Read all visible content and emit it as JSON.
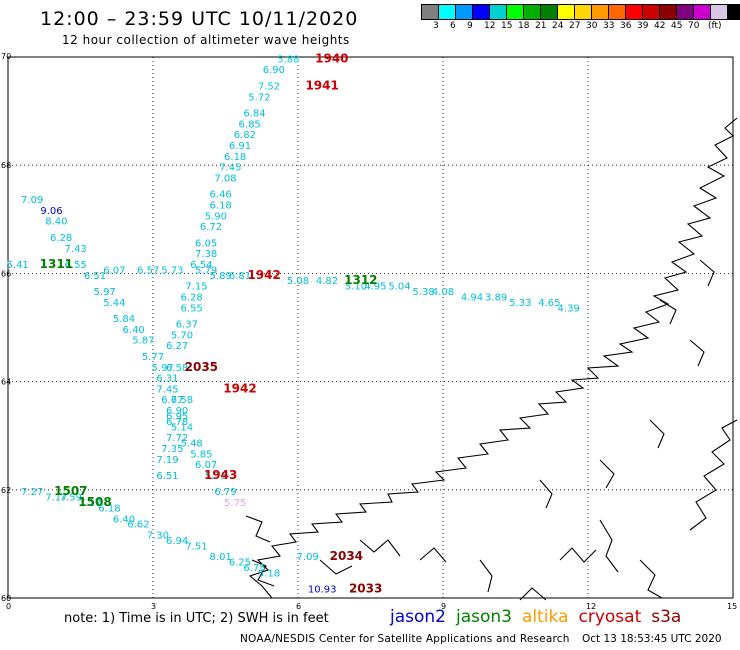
{
  "title": "12:00  –  23:59  UTC  10/11/2020",
  "subtitle": "12 hour collection of altimeter wave heights",
  "legend": {
    "colors": [
      "#808080",
      "#00ffff",
      "#0099ff",
      "#0000ff",
      "#00d0d0",
      "#00ff00",
      "#00b000",
      "#008000",
      "#ffff00",
      "#ffd700",
      "#ff9900",
      "#ff6600",
      "#ff0000",
      "#cc0000",
      "#8b0000",
      "#800080",
      "#cc00cc",
      "#d9c6e6",
      "#000000"
    ],
    "labels": [
      "3",
      "6",
      "9",
      "12",
      "15",
      "18",
      "21",
      "24",
      "27",
      "30",
      "33",
      "36",
      "39",
      "42",
      "45",
      "70",
      "(ft)"
    ]
  },
  "axes": {
    "lon_labels": [
      "0",
      "3",
      "6",
      "9",
      "12",
      "15"
    ],
    "lat_labels": [
      "70",
      "68",
      "66",
      "64",
      "62",
      "60"
    ]
  },
  "colors": {
    "jason2": "#0000cc",
    "jason3": "#008000",
    "altika": "#ff9900",
    "cryosat": "#cc0000",
    "s3a": "#8b0000",
    "wave_cyan": "#00c0d8"
  },
  "tracks": [
    {
      "points": [
        {
          "lon": 5.8,
          "lat": 69.9,
          "v": "5.88",
          "c": "#00d8d8"
        },
        {
          "lon": 5.5,
          "lat": 69.7,
          "v": "6.90",
          "c": "#00c0d8"
        },
        {
          "lon": 5.4,
          "lat": 69.4,
          "v": "7.52",
          "c": "#00c0d8"
        },
        {
          "lon": 5.2,
          "lat": 69.2,
          "v": "5.72",
          "c": "#00c0d8"
        },
        {
          "lon": 5.1,
          "lat": 68.9,
          "v": "6.84",
          "c": "#00c0d8"
        },
        {
          "lon": 5.0,
          "lat": 68.7,
          "v": "6.85",
          "c": "#00c0d8"
        },
        {
          "lon": 4.9,
          "lat": 68.5,
          "v": "6.82",
          "c": "#00c0d8"
        },
        {
          "lon": 4.8,
          "lat": 68.3,
          "v": "6.91",
          "c": "#00c0d8"
        },
        {
          "lon": 4.7,
          "lat": 68.1,
          "v": "6.18",
          "c": "#00c0d8"
        },
        {
          "lon": 4.6,
          "lat": 67.9,
          "v": "7.45",
          "c": "#00c0d8"
        },
        {
          "lon": 4.5,
          "lat": 67.7,
          "v": "7.08",
          "c": "#00c0d8"
        },
        {
          "lon": 4.4,
          "lat": 67.4,
          "v": "6.46",
          "c": "#00c0d8"
        },
        {
          "lon": 4.4,
          "lat": 67.2,
          "v": "6.18",
          "c": "#00c0d8"
        },
        {
          "lon": 4.3,
          "lat": 67.0,
          "v": "5.90",
          "c": "#00c0d8"
        },
        {
          "lon": 4.2,
          "lat": 66.8,
          "v": "6.72",
          "c": "#00c0d8"
        },
        {
          "lon": 4.1,
          "lat": 66.5,
          "v": "6.05",
          "c": "#00c0d8"
        },
        {
          "lon": 4.1,
          "lat": 66.3,
          "v": "7.38",
          "c": "#00c0d8"
        },
        {
          "lon": 4.0,
          "lat": 66.1,
          "v": "6.54",
          "c": "#00c0d8"
        },
        {
          "lon": 3.9,
          "lat": 65.7,
          "v": "7.15",
          "c": "#00c0d8"
        },
        {
          "lon": 3.8,
          "lat": 65.5,
          "v": "6.28",
          "c": "#00c0d8"
        },
        {
          "lon": 3.8,
          "lat": 65.3,
          "v": "6.55",
          "c": "#00c0d8"
        },
        {
          "lon": 3.7,
          "lat": 65.0,
          "v": "6.37",
          "c": "#00c0d8"
        },
        {
          "lon": 3.6,
          "lat": 64.8,
          "v": "5.70",
          "c": "#00c0d8"
        },
        {
          "lon": 3.5,
          "lat": 64.6,
          "v": "6.27",
          "c": "#00c0d8"
        },
        {
          "lon": 3.5,
          "lat": 64.2,
          "v": "6.58",
          "c": "#00c0d8"
        },
        {
          "lon": 3.3,
          "lat": 64.0,
          "v": "6.31",
          "c": "#00c0d8"
        },
        {
          "lon": 3.3,
          "lat": 63.8,
          "v": "7.45",
          "c": "#00c0d8"
        },
        {
          "lon": 3.4,
          "lat": 63.6,
          "v": "6.67",
          "c": "#00c0d8"
        },
        {
          "lon": 3.5,
          "lat": 63.3,
          "v": "6.95",
          "c": "#00c0d8"
        },
        {
          "lon": 3.6,
          "lat": 63.1,
          "v": "5.14",
          "c": "#00c0d8"
        },
        {
          "lon": 3.8,
          "lat": 62.8,
          "v": "5.48",
          "c": "#00c0d8"
        },
        {
          "lon": 4.0,
          "lat": 62.6,
          "v": "5.85",
          "c": "#00c0d8"
        },
        {
          "lon": 4.1,
          "lat": 62.4,
          "v": "6.07",
          "c": "#00c0d8"
        },
        {
          "lon": 4.3,
          "lat": 62.2,
          "v": "5.75",
          "c": "#00c0d8"
        },
        {
          "lon": 4.5,
          "lat": 61.9,
          "v": "6.79",
          "c": "#00c0d8"
        },
        {
          "lon": 4.7,
          "lat": 61.7,
          "v": "5.75",
          "c": "#d9a6e6"
        }
      ]
    },
    {
      "points": [
        {
          "lon": 0.5,
          "lat": 67.3,
          "v": "7.09",
          "c": "#00c0d8"
        },
        {
          "lon": 0.9,
          "lat": 67.1,
          "v": "9.06",
          "c": "#0000cc"
        },
        {
          "lon": 1.0,
          "lat": 66.9,
          "v": "8.40",
          "c": "#00c0d8"
        },
        {
          "lon": 1.1,
          "lat": 66.6,
          "v": "6.28",
          "c": "#00c0d8"
        },
        {
          "lon": 1.4,
          "lat": 66.4,
          "v": "7.43",
          "c": "#00c0d8"
        },
        {
          "lon": 1.8,
          "lat": 65.9,
          "v": "6.51",
          "c": "#00c0d8"
        },
        {
          "lon": 2.0,
          "lat": 65.6,
          "v": "5.97",
          "c": "#00c0d8"
        },
        {
          "lon": 2.2,
          "lat": 65.4,
          "v": "5.44",
          "c": "#00c0d8"
        },
        {
          "lon": 2.4,
          "lat": 65.1,
          "v": "5.84",
          "c": "#00c0d8"
        },
        {
          "lon": 2.6,
          "lat": 64.9,
          "v": "6.40",
          "c": "#00c0d8"
        },
        {
          "lon": 2.8,
          "lat": 64.7,
          "v": "5.87",
          "c": "#00c0d8"
        },
        {
          "lon": 3.0,
          "lat": 64.4,
          "v": "5.77",
          "c": "#00c0d8"
        },
        {
          "lon": 3.2,
          "lat": 64.2,
          "v": "5.97",
          "c": "#00c0d8"
        },
        {
          "lon": 3.6,
          "lat": 63.6,
          "v": "7.58",
          "c": "#00c0d8"
        },
        {
          "lon": 3.5,
          "lat": 63.4,
          "v": "6.90",
          "c": "#00c0d8"
        },
        {
          "lon": 3.5,
          "lat": 63.2,
          "v": "6.78",
          "c": "#00c0d8"
        },
        {
          "lon": 3.5,
          "lat": 62.9,
          "v": "7.72",
          "c": "#00c0d8"
        },
        {
          "lon": 3.4,
          "lat": 62.7,
          "v": "7.35",
          "c": "#00c0d8"
        },
        {
          "lon": 3.3,
          "lat": 62.5,
          "v": "7.19",
          "c": "#00c0d8"
        },
        {
          "lon": 3.3,
          "lat": 62.2,
          "v": "6.51",
          "c": "#00c0d8"
        }
      ]
    },
    {
      "points": [
        {
          "lon": 0.2,
          "lat": 66.1,
          "v": "5.41",
          "c": "#00c0d8"
        },
        {
          "lon": 1.4,
          "lat": 66.1,
          "v": "6.55",
          "c": "#00c0d8"
        },
        {
          "lon": 2.2,
          "lat": 66.0,
          "v": "6.07",
          "c": "#00c0d8"
        },
        {
          "lon": 2.9,
          "lat": 66.0,
          "v": "6.57",
          "c": "#00c0d8"
        },
        {
          "lon": 3.4,
          "lat": 66.0,
          "v": "5.73",
          "c": "#00c0d8"
        },
        {
          "lon": 4.1,
          "lat": 66.0,
          "v": "5.79",
          "c": "#00c0d8"
        },
        {
          "lon": 4.4,
          "lat": 65.9,
          "v": "5.89",
          "c": "#00c0d8"
        },
        {
          "lon": 4.8,
          "lat": 65.9,
          "v": "6.81",
          "c": "#00c0d8"
        },
        {
          "lon": 6.0,
          "lat": 65.8,
          "v": "5.08",
          "c": "#00c0d8"
        },
        {
          "lon": 6.6,
          "lat": 65.8,
          "v": "4.82",
          "c": "#00c0d8"
        },
        {
          "lon": 7.2,
          "lat": 65.7,
          "v": "5.10",
          "c": "#00c0d8"
        },
        {
          "lon": 7.6,
          "lat": 65.7,
          "v": "4.95",
          "c": "#00c0d8"
        },
        {
          "lon": 8.1,
          "lat": 65.7,
          "v": "5.04",
          "c": "#00c0d8"
        },
        {
          "lon": 8.6,
          "lat": 65.6,
          "v": "5.38",
          "c": "#00c0d8"
        },
        {
          "lon": 9.0,
          "lat": 65.6,
          "v": "4.08",
          "c": "#00c0d8"
        },
        {
          "lon": 9.6,
          "lat": 65.5,
          "v": "4.94",
          "c": "#00c0d8"
        },
        {
          "lon": 10.1,
          "lat": 65.5,
          "v": "3.89",
          "c": "#00c0d8"
        },
        {
          "lon": 10.6,
          "lat": 65.4,
          "v": "5.33",
          "c": "#00c0d8"
        },
        {
          "lon": 11.2,
          "lat": 65.4,
          "v": "4.65",
          "c": "#00c0d8"
        },
        {
          "lon": 11.6,
          "lat": 65.3,
          "v": "4.39",
          "c": "#00c0d8"
        }
      ]
    },
    {
      "points": [
        {
          "lon": 0.5,
          "lat": 61.9,
          "v": "7.27",
          "c": "#00c0d8"
        },
        {
          "lon": 1.0,
          "lat": 61.8,
          "v": "7.17",
          "c": "#00c0d8"
        },
        {
          "lon": 1.3,
          "lat": 61.8,
          "v": "7.59",
          "c": "#00c0d8"
        },
        {
          "lon": 1.7,
          "lat": 61.7,
          "v": "7.17",
          "c": "#00c0d8"
        },
        {
          "lon": 2.1,
          "lat": 61.6,
          "v": "6.18",
          "c": "#00c0d8"
        },
        {
          "lon": 2.4,
          "lat": 61.4,
          "v": "6.40",
          "c": "#00c0d8"
        },
        {
          "lon": 2.7,
          "lat": 61.3,
          "v": "6.62",
          "c": "#00c0d8"
        },
        {
          "lon": 3.1,
          "lat": 61.1,
          "v": "7.30",
          "c": "#00c0d8"
        },
        {
          "lon": 3.5,
          "lat": 61.0,
          "v": "6.94",
          "c": "#00c0d8"
        },
        {
          "lon": 3.9,
          "lat": 60.9,
          "v": "7.51",
          "c": "#00c0d8"
        },
        {
          "lon": 4.4,
          "lat": 60.7,
          "v": "8.01",
          "c": "#00c0d8"
        },
        {
          "lon": 4.8,
          "lat": 60.6,
          "v": "6.25",
          "c": "#00c0d8"
        },
        {
          "lon": 5.1,
          "lat": 60.5,
          "v": "6.75",
          "c": "#00c0d8"
        },
        {
          "lon": 5.4,
          "lat": 60.4,
          "v": "5.18",
          "c": "#00c0d8"
        }
      ]
    },
    {
      "points": [
        {
          "lon": 6.2,
          "lat": 60.7,
          "v": "7.09",
          "c": "#00c0d8"
        },
        {
          "lon": 6.5,
          "lat": 60.1,
          "v": "10.93",
          "c": "#0000cc"
        }
      ]
    }
  ],
  "pass_times": [
    {
      "lon": 6.7,
      "lat": 69.9,
      "t": "1940",
      "c": "#cc0000"
    },
    {
      "lon": 6.5,
      "lat": 69.4,
      "t": "1941",
      "c": "#cc0000"
    },
    {
      "lon": 5.3,
      "lat": 65.9,
      "t": "1942",
      "c": "#cc0000"
    },
    {
      "lon": 4.8,
      "lat": 63.8,
      "t": "1942",
      "c": "#cc0000"
    },
    {
      "lon": 4.4,
      "lat": 62.2,
      "t": "1943",
      "c": "#cc0000"
    },
    {
      "lon": 4.0,
      "lat": 64.2,
      "t": "2035",
      "c": "#8b0000"
    },
    {
      "lon": 7.0,
      "lat": 60.7,
      "t": "2034",
      "c": "#8b0000"
    },
    {
      "lon": 7.4,
      "lat": 60.1,
      "t": "2033",
      "c": "#8b0000"
    },
    {
      "lon": 7.3,
      "lat": 65.8,
      "t": "1312",
      "c": "#008000"
    },
    {
      "lon": 1.0,
      "lat": 66.1,
      "t": "1311",
      "c": "#008000"
    },
    {
      "lon": 1.3,
      "lat": 61.9,
      "t": "1507",
      "c": "#008000"
    },
    {
      "lon": 1.8,
      "lat": 61.7,
      "t": "1508",
      "c": "#008000"
    }
  ],
  "note": "note:  1) Time is in UTC; 2) SWH is in feet",
  "missions": [
    {
      "name": "jason2",
      "color": "#0000cc"
    },
    {
      "name": "jason3",
      "color": "#008000"
    },
    {
      "name": "altika",
      "color": "#ff9900"
    },
    {
      "name": "cryosat",
      "color": "#cc0000"
    },
    {
      "name": "s3a",
      "color": "#8b0000"
    }
  ],
  "credit": "NOAA/NESDIS Center for Satellite Applications and Research",
  "timestamp": "Oct 13 18:53:45 UTC 2020"
}
